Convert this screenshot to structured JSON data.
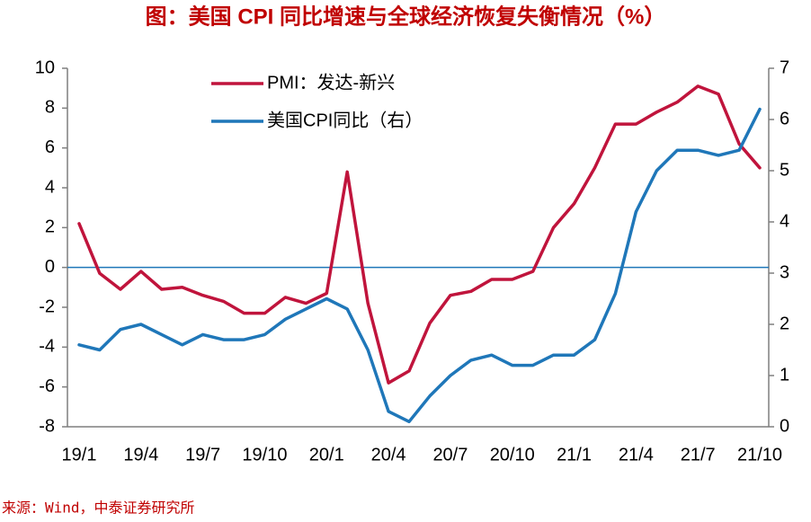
{
  "chart_data": {
    "type": "line",
    "title": "图：美国 CPI 同比增速与全球经济恢复失衡情况（%）",
    "source": "来源：Wind，中泰证券研究所",
    "categories": [
      "19/1",
      null,
      null,
      "19/4",
      null,
      null,
      "19/7",
      null,
      null,
      "19/10",
      null,
      null,
      "20/1",
      null,
      null,
      "20/4",
      null,
      null,
      "20/7",
      null,
      null,
      "20/10",
      null,
      null,
      "21/1",
      null,
      null,
      "21/4",
      null,
      null,
      "21/7",
      null,
      null,
      "21/10"
    ],
    "series": [
      {
        "name": "PMI：发达-新兴",
        "color": "#c0143c",
        "values": [
          2.2,
          -0.3,
          -1.1,
          -0.2,
          -1.1,
          -1.0,
          -1.4,
          -1.7,
          -2.3,
          -2.3,
          -1.5,
          -1.8,
          -1.3,
          4.8,
          -1.8,
          -5.8,
          -5.2,
          -2.8,
          -1.4,
          -1.2,
          -0.6,
          -0.6,
          -0.2,
          2.0,
          3.2,
          5.0,
          7.2,
          7.2,
          7.8,
          8.3,
          9.1,
          8.7,
          6.2,
          5.0
        ]
      },
      {
        "name": "美国CPI同比（右）",
        "color": "#1f77b9",
        "axis": "y2",
        "values": [
          1.6,
          1.5,
          1.9,
          2.0,
          1.8,
          1.6,
          1.8,
          1.7,
          1.7,
          1.8,
          2.1,
          2.3,
          2.5,
          2.3,
          1.5,
          0.3,
          0.1,
          0.6,
          1.0,
          1.3,
          1.4,
          1.2,
          1.2,
          1.4,
          1.4,
          1.7,
          2.6,
          4.2,
          5.0,
          5.4,
          5.4,
          5.3,
          5.4,
          6.2
        ]
      }
    ],
    "ylim": [
      -8,
      10
    ],
    "yticks": [
      -8,
      -6,
      -4,
      -2,
      0,
      2,
      4,
      6,
      8,
      10
    ],
    "y2lim": [
      0,
      7
    ],
    "y2ticks": [
      0,
      1,
      2,
      3,
      4,
      5,
      6,
      7
    ],
    "zero_line_color": "#1f77b9",
    "legend": "top-left"
  }
}
